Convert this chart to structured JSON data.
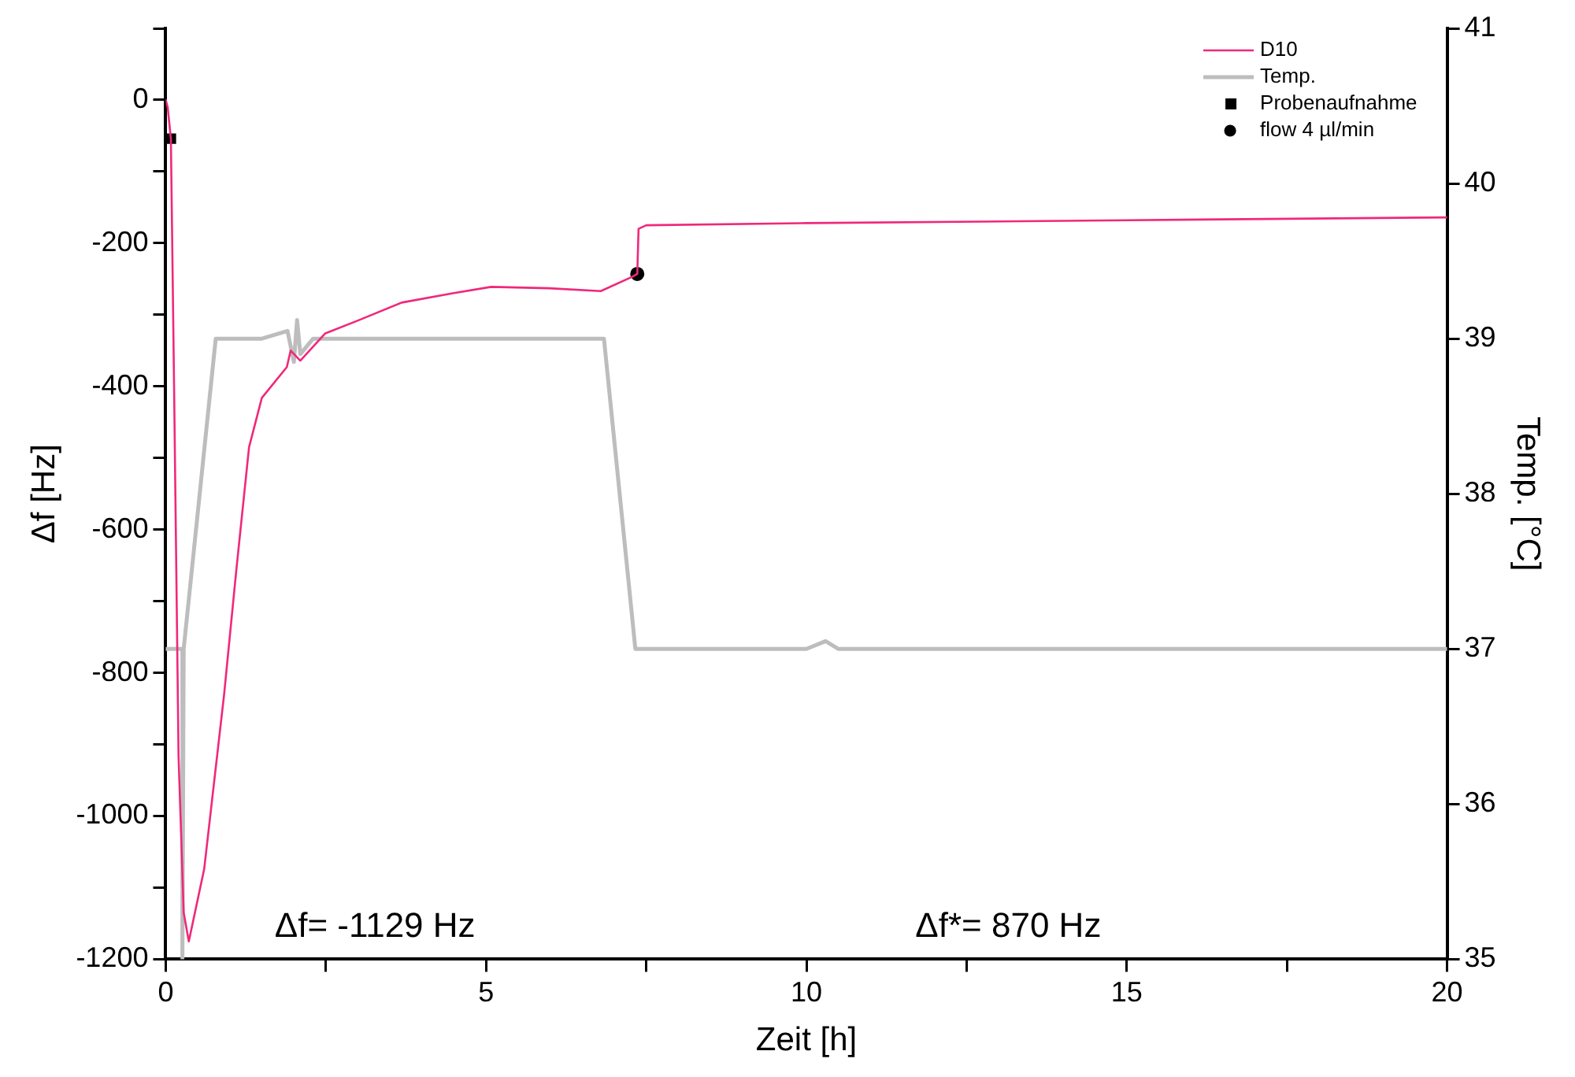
{
  "chart_data": {
    "type": "line",
    "xlabel": "Zeit [h]",
    "ylabel": "Δf [Hz]",
    "y2label": "Temp. [°C]",
    "xlim": [
      0,
      20
    ],
    "xticks": [
      0,
      {
        "value": 2.5,
        "label": null
      },
      5,
      {
        "value": 7.5,
        "label": null
      },
      10,
      {
        "value": 12.5,
        "label": null
      },
      15,
      {
        "value": 17.5,
        "label": null
      },
      20
    ],
    "ylim": [
      -1200,
      100
    ],
    "yticks": [
      -1200,
      {
        "value": -1100,
        "label": null
      },
      -1000,
      {
        "value": -900,
        "label": null
      },
      -800,
      {
        "value": -700,
        "label": null
      },
      -600,
      {
        "value": -500,
        "label": null
      },
      -400,
      {
        "value": -300,
        "label": null
      },
      -200,
      {
        "value": -100,
        "label": null
      },
      0,
      {
        "value": 100,
        "label": null
      }
    ],
    "y2lim": [
      35,
      41
    ],
    "y2ticks": [
      35,
      36,
      37,
      38,
      39,
      40,
      41
    ],
    "grid": false,
    "legend": "top right",
    "annotations": [
      "Δf= -1129 Hz",
      "Δf*= 870 Hz"
    ],
    "series": [
      {
        "name": "D10",
        "type": "line",
        "color": "#f0287a",
        "x": [
          0,
          0.03,
          0.08,
          0.13,
          0.2,
          0.28,
          0.36,
          0.6,
          0.91,
          1.1,
          1.3,
          1.5,
          1.89,
          1.95,
          2.1,
          2.49,
          3.0,
          3.68,
          4.48,
          5.08,
          5.98,
          6.79,
          7.28,
          7.36,
          7.38,
          7.5,
          10,
          15,
          20
        ],
        "values": [
          0,
          -10,
          -54,
          -400,
          -917,
          -1135,
          -1175,
          -1074,
          -831,
          -658,
          -485,
          -416,
          -373,
          -350,
          -364,
          -326,
          -308,
          -283,
          -270,
          -261,
          -263,
          -267,
          -247,
          -243,
          -180,
          -175,
          -172,
          -168,
          -164
        ]
      },
      {
        "name": "Temp.",
        "type": "line",
        "axis": "y2",
        "color": "#bdbdbd",
        "x": [
          0,
          0.24,
          0.26,
          0.26,
          0.28,
          0.78,
          1.5,
          1.9,
          2.0,
          2.05,
          2.1,
          2.3,
          6.84,
          7.33,
          10,
          10.3,
          10.5,
          20
        ],
        "values": [
          37,
          37,
          37,
          35,
          37,
          39,
          39,
          39.05,
          38.85,
          39.12,
          38.9,
          39,
          39,
          37,
          37,
          37.05,
          37,
          37
        ]
      },
      {
        "name": "Probenaufnahme",
        "type": "scatter",
        "marker": "square",
        "color": "#000000",
        "x": [
          0.08
        ],
        "values": [
          -54
        ]
      },
      {
        "name": "flow 4 µl/min",
        "type": "scatter",
        "marker": "circle",
        "color": "#000000",
        "x": [
          7.36
        ],
        "values": [
          -243
        ]
      }
    ]
  }
}
